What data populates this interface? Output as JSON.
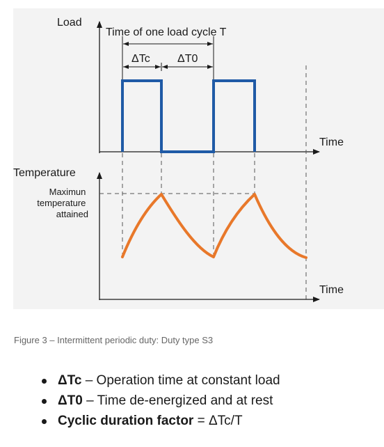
{
  "diagram": {
    "load_axis_label": "Load",
    "time_axis_label_top": "Time",
    "cycle_label": "Time of one load cycle T",
    "delta_tc_label": "ΔTc",
    "delta_t0_label": "ΔT0",
    "temperature_axis_label": "Temperature",
    "max_temp_label": [
      "Maximun",
      "temperature",
      "attained"
    ],
    "time_axis_label_bottom": "Time",
    "colors": {
      "load_line": "#1f5aa6",
      "temperature_curve": "#e8782a",
      "axes": "#1a1a1a",
      "dashed": "#555555",
      "background": "#f3f3f3"
    }
  },
  "caption": "Figure 3 – Intermittent periodic duty: Duty type S3",
  "bullets": [
    {
      "term": "ΔTc",
      "description": " – Operation time at constant load"
    },
    {
      "term": "ΔT0",
      "description": " – Time de-energized and at rest"
    },
    {
      "term": "Cyclic duration factor",
      "description": " = ΔTc/T"
    }
  ]
}
